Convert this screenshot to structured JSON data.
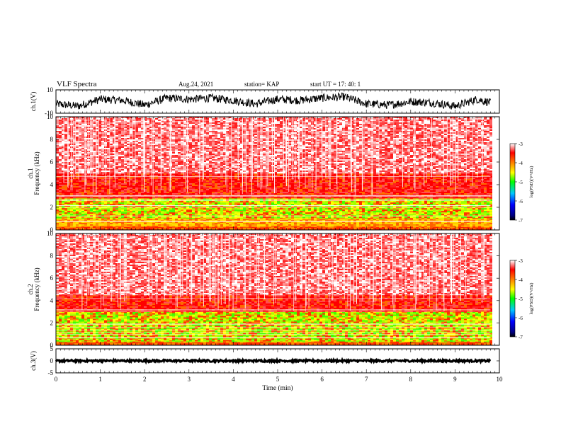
{
  "header": {
    "title": "VLF Spectra",
    "date": "Aug.24, 2021",
    "station": "station= KAP",
    "start": "start  UT =   17: 40: 1"
  },
  "chart_data": [
    {
      "type": "line",
      "panel": "ch1-waveform",
      "ylabel": "ch.1(V)",
      "ylim": [
        -10,
        10
      ],
      "yticks": [
        "10",
        "-10"
      ],
      "xlim": [
        0,
        10
      ],
      "color": "#000000",
      "series": [
        {
          "x": [
            0,
            0.5,
            1,
            1.5,
            2,
            2.5,
            3,
            3.5,
            4,
            4.5,
            5,
            5.5,
            6,
            6.5,
            7,
            7.5,
            8,
            8.5,
            9,
            9.5,
            9.8
          ],
          "y": [
            -2,
            -4,
            2,
            1,
            -3,
            3,
            2,
            3,
            1,
            -2,
            2,
            1,
            3,
            4,
            -2,
            -3,
            0,
            -1,
            -4,
            2,
            -1
          ]
        }
      ]
    },
    {
      "type": "heatmap",
      "panel": "ch1-spectrogram",
      "ylabel": "ch.1\nFrequency  (kHz)",
      "ylim": [
        0,
        10
      ],
      "yticks": [
        "0",
        "2",
        "4",
        "6",
        "8",
        "10"
      ],
      "xlim": [
        0,
        10
      ],
      "colorbar": {
        "label": "log(PSD)(V²/Hz)",
        "range": [
          -7,
          -3
        ],
        "ticks": [
          "-3",
          "-4",
          "-5",
          "-6",
          "-7"
        ]
      },
      "bands_khz": [
        {
          "from": 0,
          "to": 0.3,
          "level": "red-orange"
        },
        {
          "from": 0.3,
          "to": 1.0,
          "level": "orange-yellow"
        },
        {
          "from": 1.0,
          "to": 2.8,
          "level": "yellow-green"
        },
        {
          "from": 2.8,
          "to": 5.0,
          "level": "red"
        },
        {
          "from": 5.0,
          "to": 10,
          "level": "red-white"
        }
      ]
    },
    {
      "type": "heatmap",
      "panel": "ch2-spectrogram",
      "ylabel": "ch.2\nFrequency  (kHz)",
      "ylim": [
        0,
        10
      ],
      "yticks": [
        "0",
        "2",
        "4",
        "6",
        "8",
        "10"
      ],
      "xlim": [
        0,
        10
      ],
      "colorbar": {
        "label": "log(PSD)(V²/Hz)",
        "range": [
          -7,
          -3
        ],
        "ticks": [
          "-3",
          "-4",
          "-5",
          "-6",
          "-7"
        ]
      },
      "bands_khz": [
        {
          "from": 0,
          "to": 0.3,
          "level": "red-orange"
        },
        {
          "from": 0.3,
          "to": 3.0,
          "level": "yellow-green"
        },
        {
          "from": 3.0,
          "to": 4.5,
          "level": "red"
        },
        {
          "from": 4.5,
          "to": 10,
          "level": "red-white"
        }
      ]
    },
    {
      "type": "line",
      "panel": "ch3-waveform",
      "ylabel": "ch.3(V)",
      "ylim": [
        -5,
        5
      ],
      "yticks": [
        "5",
        "0",
        "-5"
      ],
      "xlim": [
        0,
        10
      ],
      "xlabel": "Time  (min)",
      "xticks": [
        "0",
        "1",
        "2",
        "3",
        "4",
        "5",
        "6",
        "7",
        "8",
        "9",
        "10"
      ],
      "color": "#000000",
      "series": [
        {
          "x": [
            0,
            9.8
          ],
          "y": [
            0,
            0
          ]
        }
      ]
    }
  ]
}
